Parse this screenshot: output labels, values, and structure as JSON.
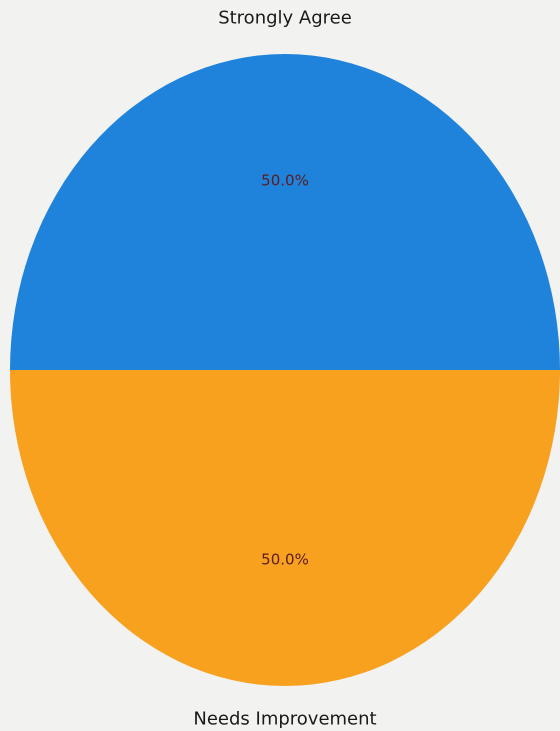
{
  "chart_data": {
    "type": "pie",
    "title": "",
    "slices": [
      {
        "label": "Strongly Agree",
        "value": 50.0,
        "percent_label": "50.0%",
        "color": "#1f83dc"
      },
      {
        "label": "Needs Improvement",
        "value": 50.0,
        "percent_label": "50.0%",
        "color": "#f7a11f"
      }
    ],
    "start_angle_deg": 0,
    "direction": "counterclockwise",
    "legend": "none"
  }
}
